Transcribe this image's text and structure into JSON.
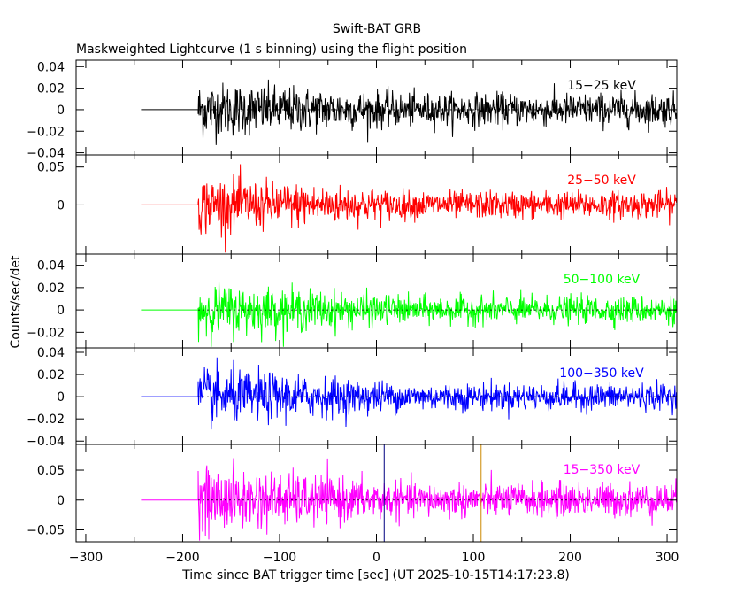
{
  "figure": {
    "title": "Swift-BAT GRB",
    "subtitle": "Maskweighted Lightcurve (1 s binning) using the flight position",
    "xlabel": "Time since BAT trigger time [sec] (UT 2025-10-15T14:17:23.8)",
    "ylabel": "Counts/sec/det"
  },
  "chart_data": [
    {
      "type": "line",
      "series": [
        {
          "name": "15-25 keV",
          "color": "#000000"
        }
      ],
      "band_label": "15−25 keV",
      "xlim": [
        -310,
        310
      ],
      "ylim": [
        -0.042,
        0.046
      ],
      "yticks": [
        -0.04,
        -0.02,
        0,
        0.02,
        0.04
      ],
      "ytick_labels": [
        "−0.04",
        "−0.02",
        "0",
        "0.02",
        "0.04"
      ],
      "flat_segment": {
        "x": [
          -243,
          -184
        ],
        "y": 0
      },
      "noise_start": -184,
      "noise_sigma_early": 0.013,
      "noise_sigma_late": 0.0075,
      "grid": false
    },
    {
      "type": "line",
      "series": [
        {
          "name": "25-50 keV",
          "color": "#ff0000"
        }
      ],
      "band_label": "25−50 keV",
      "xlim": [
        -310,
        310
      ],
      "ylim": [
        -0.065,
        0.066
      ],
      "yticks": [
        0,
        0.05
      ],
      "ytick_labels": [
        "0",
        "0.05"
      ],
      "flat_segment": {
        "x": [
          -243,
          -184
        ],
        "y": 0
      },
      "noise_start": -184,
      "noise_sigma_early": 0.019,
      "noise_sigma_late": 0.009,
      "grid": false
    },
    {
      "type": "line",
      "series": [
        {
          "name": "50-100 keV",
          "color": "#00ff00"
        }
      ],
      "band_label": "50−100 keV",
      "xlim": [
        -310,
        310
      ],
      "ylim": [
        -0.034,
        0.05
      ],
      "yticks": [
        -0.02,
        0,
        0.02,
        0.04
      ],
      "ytick_labels": [
        "−0.02",
        "0",
        "0.02",
        "0.04"
      ],
      "flat_segment": {
        "x": [
          -243,
          -184
        ],
        "y": 0
      },
      "noise_start": -184,
      "noise_sigma_early": 0.012,
      "noise_sigma_late": 0.006,
      "grid": false
    },
    {
      "type": "line",
      "series": [
        {
          "name": "100-350 keV",
          "color": "#0000ff"
        }
      ],
      "band_label": "100−350 keV",
      "xlim": [
        -310,
        310
      ],
      "ylim": [
        -0.043,
        0.044
      ],
      "yticks": [
        -0.04,
        -0.02,
        0,
        0.02,
        0.04
      ],
      "ytick_labels": [
        "−0.04",
        "−0.02",
        "0",
        "0.02",
        "0.04"
      ],
      "flat_segment": {
        "x": [
          -243,
          -184
        ],
        "y": 0
      },
      "noise_start": -184,
      "noise_sigma_early": 0.013,
      "noise_sigma_late": 0.006,
      "grid": false
    },
    {
      "type": "line",
      "series": [
        {
          "name": "15-350 keV",
          "color": "#ff00ff"
        }
      ],
      "band_label": "15−350 keV",
      "xlim": [
        -310,
        310
      ],
      "ylim": [
        -0.07,
        0.093
      ],
      "yticks": [
        -0.05,
        0,
        0.05
      ],
      "ytick_labels": [
        "−0.05",
        "0",
        "0.05"
      ],
      "xticks": [
        -300,
        -200,
        -100,
        0,
        100,
        200,
        300
      ],
      "xtick_labels": [
        "−300",
        "−200",
        "−100",
        "0",
        "100",
        "200",
        "300"
      ],
      "flat_segment": {
        "x": [
          -243,
          -184
        ],
        "y": 0
      },
      "noise_start": -184,
      "noise_sigma_early": 0.028,
      "noise_sigma_late": 0.014,
      "vlines": [
        {
          "x": 8,
          "color": "#000080"
        },
        {
          "x": 108,
          "color": "#cc8800"
        }
      ],
      "grid": false
    }
  ]
}
